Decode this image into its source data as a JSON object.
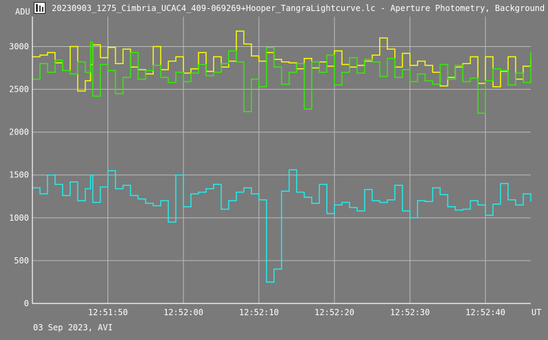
{
  "header": {
    "title": "20230903_1275_Cimbria_UCAC4_409-069269+Hooper_TangraLightcurve.lc - Aperture Photometry, Background",
    "app_icon": "lightcurve-app-icon"
  },
  "footer": {
    "date_note": "03 Sep 2023, AVI"
  },
  "colors": {
    "background": "#7a7a7a",
    "grid": "#bdbdbd",
    "axis": "#ffffff",
    "text": "#ffffff"
  },
  "chart_data": {
    "type": "line",
    "ylabel": "ADU",
    "xlabel": "UT",
    "title": "",
    "xlim": [
      "12:51:40",
      "12:52:46"
    ],
    "ylim": [
      0,
      3350
    ],
    "yticks": [
      0,
      500,
      1000,
      1500,
      2000,
      2500,
      3000
    ],
    "xticks": [
      "12:51:50",
      "12:52:00",
      "12:52:10",
      "12:52:20",
      "12:52:30",
      "12:52:40"
    ],
    "grid": true,
    "legend": "none",
    "series": [
      {
        "color": "#ffff00",
        "x_seconds": [
          40,
          41,
          42,
          43,
          44,
          45,
          46,
          47,
          47.7,
          48,
          49,
          50,
          51,
          52,
          53,
          54,
          55,
          56,
          57,
          58,
          59,
          60,
          61,
          62,
          63,
          64,
          65,
          66,
          67,
          68,
          69,
          70,
          71,
          72,
          73,
          74,
          75,
          76,
          77,
          78,
          79,
          80,
          81,
          82,
          83,
          84,
          85,
          86,
          87,
          88,
          89,
          90,
          91,
          92,
          93,
          94,
          95,
          96,
          97,
          98,
          99,
          100,
          101,
          102,
          103,
          104,
          105,
          106
        ],
        "values": [
          2880,
          2900,
          2930,
          2810,
          2720,
          3000,
          2480,
          2600,
          2790,
          3020,
          2870,
          2990,
          2800,
          2970,
          2760,
          2730,
          2680,
          3000,
          2730,
          2830,
          2880,
          2690,
          2740,
          2930,
          2710,
          2880,
          2760,
          2830,
          3180,
          3030,
          2890,
          2830,
          2930,
          2850,
          2820,
          2810,
          2740,
          2860,
          2750,
          2820,
          2770,
          2950,
          2790,
          2760,
          2780,
          2830,
          2900,
          3100,
          2970,
          2760,
          2920,
          2780,
          2830,
          2780,
          2700,
          2540,
          2640,
          2760,
          2800,
          2880,
          2570,
          2880,
          2530,
          2710,
          2880,
          2620,
          2770,
          2860
        ]
      },
      {
        "color": "#33ee00",
        "x_seconds": [
          40,
          41,
          42,
          43,
          44,
          45,
          46,
          47,
          47.7,
          48,
          49,
          50,
          51,
          52,
          53,
          54,
          55,
          56,
          57,
          58,
          59,
          60,
          61,
          62,
          63,
          64,
          65,
          66,
          67,
          68,
          69,
          70,
          71,
          72,
          73,
          74,
          75,
          76,
          77,
          78,
          79,
          80,
          81,
          82,
          83,
          84,
          85,
          86,
          87,
          88,
          89,
          90,
          91,
          92,
          93,
          94,
          95,
          96,
          97,
          98,
          99,
          100,
          101,
          102,
          103,
          104,
          105,
          106
        ],
        "values": [
          2620,
          2800,
          2700,
          2840,
          2720,
          2680,
          2820,
          2700,
          3050,
          2420,
          2790,
          2720,
          2450,
          2640,
          2930,
          2620,
          2720,
          2780,
          2640,
          2580,
          2700,
          2590,
          2690,
          2790,
          2660,
          2700,
          2800,
          2950,
          2820,
          2240,
          2620,
          2530,
          2990,
          2760,
          2560,
          2700,
          2800,
          2270,
          2820,
          2700,
          2900,
          2550,
          2700,
          2870,
          2690,
          2850,
          2820,
          2650,
          2860,
          2640,
          2730,
          2590,
          2680,
          2600,
          2560,
          2790,
          2620,
          2780,
          2590,
          2630,
          2220,
          2600,
          2740,
          2720,
          2550,
          2690,
          2580,
          2940
        ]
      },
      {
        "color": "#22eeee",
        "x_seconds": [
          40,
          41,
          42,
          43,
          44,
          45,
          46,
          47,
          47.7,
          48,
          49,
          50,
          51,
          52,
          53,
          54,
          55,
          56,
          57,
          58,
          59,
          60,
          61,
          62,
          63,
          64,
          65,
          66,
          67,
          68,
          69,
          70,
          71,
          72,
          73,
          74,
          75,
          76,
          77,
          78,
          79,
          80,
          81,
          82,
          83,
          84,
          85,
          86,
          87,
          88,
          89,
          90,
          91,
          92,
          93,
          94,
          95,
          96,
          97,
          98,
          99,
          100,
          101,
          102,
          103,
          104,
          105,
          106
        ],
        "values": [
          1350,
          1280,
          1500,
          1390,
          1260,
          1420,
          1200,
          1340,
          1500,
          1180,
          1360,
          1550,
          1340,
          1380,
          1260,
          1220,
          1170,
          1140,
          1200,
          950,
          1500,
          1130,
          1280,
          1300,
          1340,
          1390,
          1100,
          1200,
          1300,
          1350,
          1280,
          1210,
          250,
          400,
          1310,
          1560,
          1300,
          1240,
          1170,
          1390,
          1050,
          1150,
          1180,
          1120,
          1080,
          1330,
          1200,
          1180,
          1210,
          1380,
          1080,
          1000,
          1200,
          1190,
          1350,
          1270,
          1130,
          1090,
          1100,
          1200,
          1150,
          1030,
          1160,
          1400,
          1210,
          1150,
          1280,
          1190
        ]
      }
    ]
  }
}
